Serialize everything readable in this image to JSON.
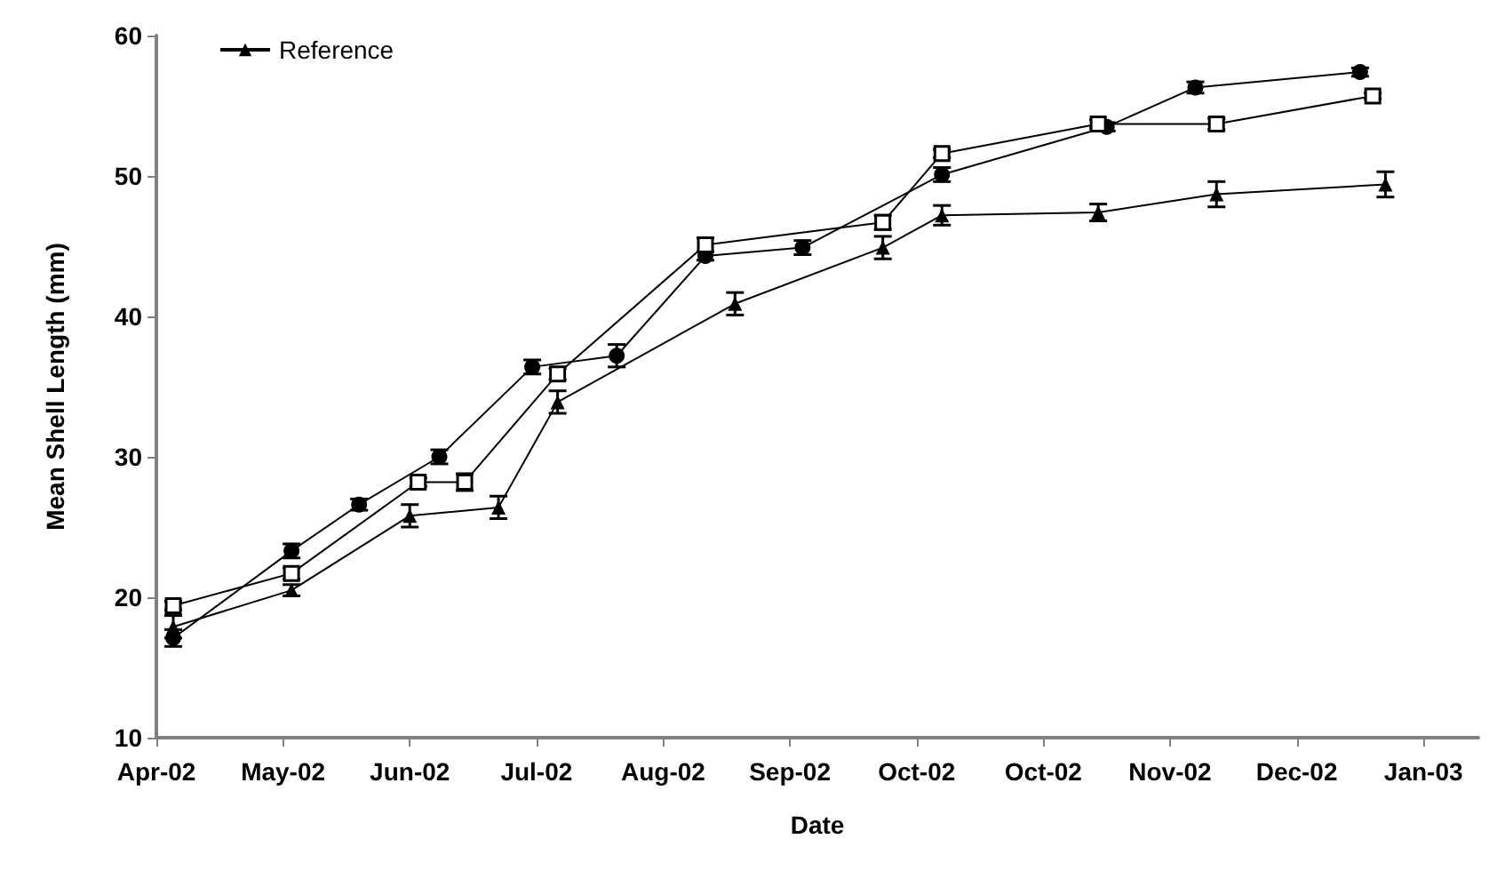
{
  "chart_data": {
    "type": "line",
    "xlabel": "Date",
    "ylabel": "Mean Shell Length (mm)",
    "xlim": [
      "2002-04-04",
      "2003-02-11"
    ],
    "xticks": [
      {
        "value": "2002-04-04",
        "label": "Apr-02"
      },
      {
        "value": "2002-05-04",
        "label": "May-02"
      },
      {
        "value": "2002-06-03",
        "label": "Jun-02"
      },
      {
        "value": "2002-07-03",
        "label": "Jul-02"
      },
      {
        "value": "2002-08-02",
        "label": "Aug-02"
      },
      {
        "value": "2002-09-01",
        "label": "Sep-02"
      },
      {
        "value": "2002-10-01",
        "label": "Oct-02"
      },
      {
        "value": "2002-10-31",
        "label": "Oct-02"
      },
      {
        "value": "2002-11-30",
        "label": "Nov-02"
      },
      {
        "value": "2002-12-30",
        "label": "Dec-02"
      },
      {
        "value": "2003-01-29",
        "label": "Jan-03"
      }
    ],
    "ylim": [
      10,
      60
    ],
    "yticks": [
      10,
      20,
      30,
      40,
      50,
      60
    ],
    "grid": false,
    "legend": "top left",
    "line_style": "solid",
    "series": [
      {
        "color": "#000000",
        "marker": "circle",
        "x": [
          "2002-04-08",
          "2002-05-06",
          "2002-05-22",
          "2002-06-10",
          "2002-07-02",
          "2002-07-22",
          "2002-08-12",
          "2002-09-04",
          "2002-10-07",
          "2002-11-15",
          "2002-12-06",
          "2003-01-14"
        ],
        "values": [
          17.1,
          23.3,
          26.6,
          30.0,
          36.4,
          37.2,
          44.3,
          44.9,
          50.1,
          53.5,
          56.3,
          57.4
        ],
        "errors": [
          0.6,
          0.5,
          0.4,
          0.5,
          0.5,
          0.8,
          0.3,
          0.5,
          0.5,
          0.3,
          0.4,
          0.3
        ]
      },
      {
        "color": "#000000",
        "marker": "square",
        "x": [
          "2002-04-08",
          "2002-05-06",
          "2002-06-05",
          "2002-06-16",
          "2002-07-08",
          "2002-08-12",
          "2002-09-23",
          "2002-10-07",
          "2002-11-13",
          "2002-12-11",
          "2003-01-17"
        ],
        "values": [
          19.4,
          21.7,
          28.2,
          28.2,
          35.9,
          45.1,
          46.7,
          51.6,
          53.7,
          53.7,
          55.7
        ],
        "errors": [
          0.3,
          0.4,
          0.3,
          0.6,
          0.4,
          0.5,
          0.5,
          0.3,
          0.3,
          0.4,
          0.2
        ]
      },
      {
        "name": "Reference",
        "color": "#000000",
        "marker": "triangle",
        "x": [
          "2002-04-08",
          "2002-05-06",
          "2002-06-03",
          "2002-06-24",
          "2002-07-08",
          "2002-08-19",
          "2002-09-23",
          "2002-10-07",
          "2002-11-13",
          "2002-12-11",
          "2003-01-20"
        ],
        "values": [
          17.9,
          20.5,
          25.8,
          26.4,
          33.9,
          40.9,
          44.9,
          47.2,
          47.4,
          48.7,
          49.4
        ],
        "errors": [
          0.8,
          0.4,
          0.8,
          0.8,
          0.8,
          0.8,
          0.8,
          0.7,
          0.6,
          0.9,
          0.9
        ]
      }
    ]
  }
}
